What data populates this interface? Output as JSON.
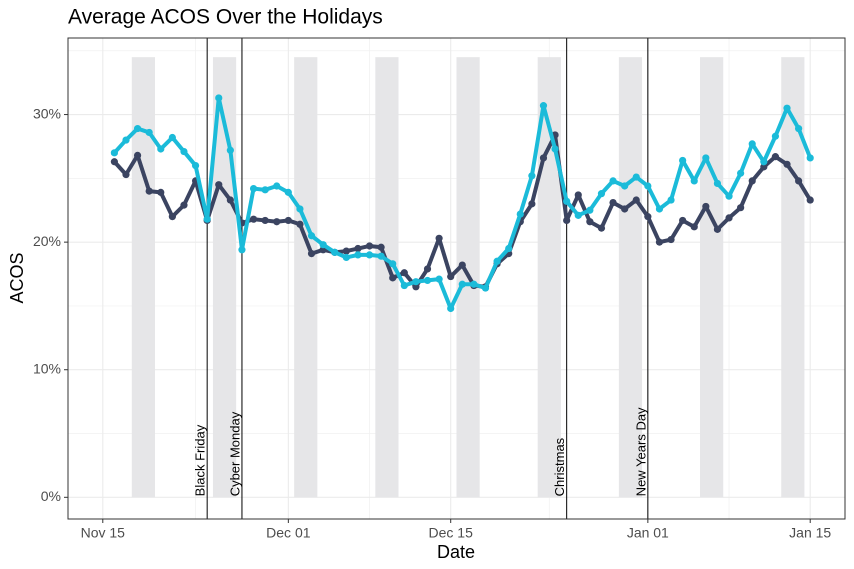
{
  "chart_data": {
    "type": "line",
    "title": "Average ACOS Over the Holidays",
    "x_label": "Date",
    "y_label": "ACOS",
    "x": [
      "Nov 16",
      "Nov 17",
      "Nov 18",
      "Nov 19",
      "Nov 20",
      "Nov 21",
      "Nov 22",
      "Nov 23",
      "Nov 24",
      "Nov 25",
      "Nov 26",
      "Nov 27",
      "Nov 28",
      "Nov 29",
      "Nov 30",
      "Dec 01",
      "Dec 02",
      "Dec 03",
      "Dec 04",
      "Dec 05",
      "Dec 06",
      "Dec 07",
      "Dec 08",
      "Dec 09",
      "Dec 10",
      "Dec 11",
      "Dec 12",
      "Dec 13",
      "Dec 14",
      "Dec 15",
      "Dec 16",
      "Dec 17",
      "Dec 18",
      "Dec 19",
      "Dec 20",
      "Dec 21",
      "Dec 22",
      "Dec 23",
      "Dec 24",
      "Dec 25",
      "Dec 26",
      "Dec 27",
      "Dec 28",
      "Dec 29",
      "Dec 30",
      "Dec 31",
      "Jan 01",
      "Jan 02",
      "Jan 03",
      "Jan 04",
      "Jan 05",
      "Jan 06",
      "Jan 07",
      "Jan 08",
      "Jan 09",
      "Jan 10",
      "Jan 11",
      "Jan 12",
      "Jan 13",
      "Jan 14",
      "Jan 15"
    ],
    "series": [
      {
        "color": "#3b4461",
        "values": [
          26.3,
          25.3,
          26.8,
          24.0,
          23.9,
          22.0,
          22.9,
          24.8,
          21.7,
          24.5,
          23.3,
          21.5,
          21.8,
          21.7,
          21.6,
          21.7,
          21.4,
          19.1,
          19.4,
          19.2,
          19.3,
          19.5,
          19.7,
          19.6,
          17.2,
          17.6,
          16.5,
          17.9,
          20.3,
          17.3,
          18.2,
          16.6,
          16.5,
          18.3,
          19.1,
          21.6,
          23.0,
          26.6,
          28.4,
          21.7,
          23.7,
          21.6,
          21.1,
          23.1,
          22.6,
          23.3,
          22.0,
          20.0,
          20.2,
          21.7,
          21.2,
          22.8,
          21.0,
          21.9,
          22.7,
          24.8,
          25.9,
          26.7,
          26.1,
          24.8,
          23.3
        ]
      },
      {
        "color": "#1bbbd9",
        "values": [
          27.0,
          28.0,
          28.9,
          28.6,
          27.3,
          28.2,
          27.1,
          26.0,
          21.8,
          31.3,
          27.2,
          19.4,
          24.2,
          24.1,
          24.4,
          23.9,
          22.6,
          20.5,
          19.8,
          19.2,
          18.8,
          19.0,
          19.0,
          18.9,
          18.3,
          16.6,
          16.9,
          17.0,
          17.1,
          14.8,
          16.7,
          16.7,
          16.4,
          18.5,
          19.5,
          22.2,
          25.2,
          30.7,
          27.3,
          23.2,
          22.1,
          22.5,
          23.8,
          24.8,
          24.4,
          25.1,
          24.4,
          22.6,
          23.3,
          26.4,
          24.8,
          26.6,
          24.6,
          23.6,
          25.4,
          27.7,
          26.3,
          28.3,
          30.5,
          28.9,
          26.6
        ]
      }
    ],
    "events": [
      {
        "label": "Black Friday",
        "date": "Nov 24"
      },
      {
        "label": "Cyber Monday",
        "date": "Nov 27"
      },
      {
        "label": "Christmas",
        "date": "Dec 25"
      },
      {
        "label": "New Years Day",
        "date": "Jan 01"
      }
    ],
    "shaded": [
      [
        "Nov 18",
        "Nov 19"
      ],
      [
        "Nov 25",
        "Nov 26"
      ],
      [
        "Dec 02",
        "Dec 03"
      ],
      [
        "Dec 09",
        "Dec 10"
      ],
      [
        "Dec 16",
        "Dec 17"
      ],
      [
        "Dec 23",
        "Dec 24"
      ],
      [
        "Dec 30",
        "Dec 31"
      ],
      [
        "Jan 06",
        "Jan 07"
      ],
      [
        "Jan 13",
        "Jan 14"
      ]
    ],
    "shade_ylim": [
      0,
      34.5
    ],
    "shade_color": "#e6e6e8",
    "xlim": [
      "Nov 12",
      "Jan 18"
    ],
    "xticks": [
      "Nov 15",
      "Dec 01",
      "Dec 15",
      "Jan 01",
      "Jan 15"
    ],
    "ylim": [
      -1.7,
      36
    ],
    "yticks": [
      {
        "value": 0,
        "label": "0%"
      },
      {
        "value": 10,
        "label": "10%"
      },
      {
        "value": 20,
        "label": "20%"
      },
      {
        "value": 30,
        "label": "30%"
      }
    ],
    "grid": true
  }
}
